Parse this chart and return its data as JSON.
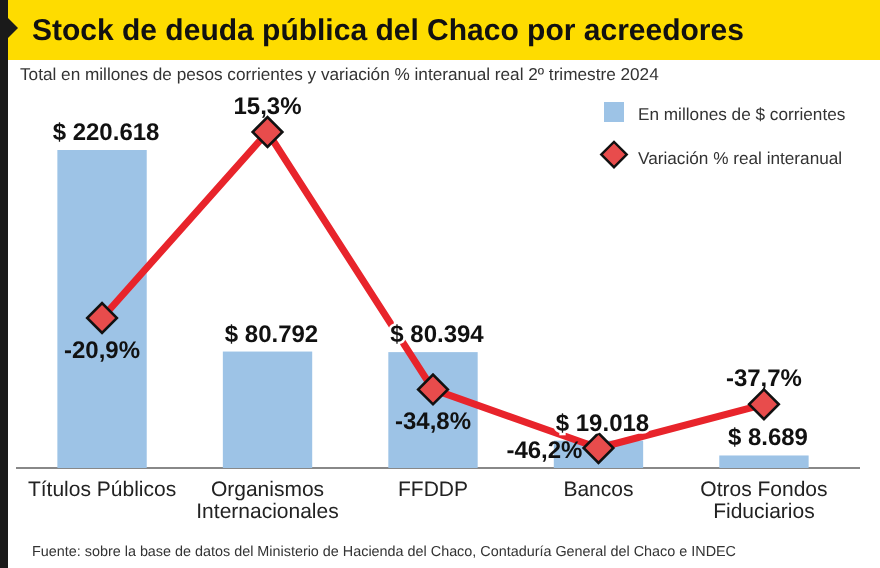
{
  "chart_data": {
    "type": "bar",
    "title": "Stock de deuda pública del Chaco por acreedores",
    "subtitle": "Total en millones de pesos corrientes y variación % interanual real 2º trimestre 2024",
    "categories": [
      "Títulos Públicos",
      "Organismos Internacionales",
      "FFDDP",
      "Bancos",
      "Otros Fondos Fiduciarios"
    ],
    "series": [
      {
        "name": "En millones de $ corrientes",
        "color": "#9dc3e6",
        "values": [
          220618,
          80792,
          80394,
          19018,
          8689
        ],
        "value_labels": [
          "$ 220.618",
          "$ 80.792",
          "$ 80.394",
          "$ 19.018",
          "$ 8.689"
        ]
      },
      {
        "name": "Variación % real interanual",
        "type": "line",
        "axis": "y2",
        "color": "#e8242b",
        "marker": "diamond",
        "values": [
          -20.9,
          15.3,
          -34.8,
          -46.2,
          -37.7
        ],
        "value_labels": [
          "-20,9%",
          "15,3%",
          "-34,8%",
          "-46,2%",
          "-37,7%"
        ]
      }
    ],
    "legend": "top right",
    "annotations": [
      "Fuente: sobre la base de datos del Ministerio de Hacienda del Chaco, Contaduría General del Chaco e INDEC"
    ]
  }
}
